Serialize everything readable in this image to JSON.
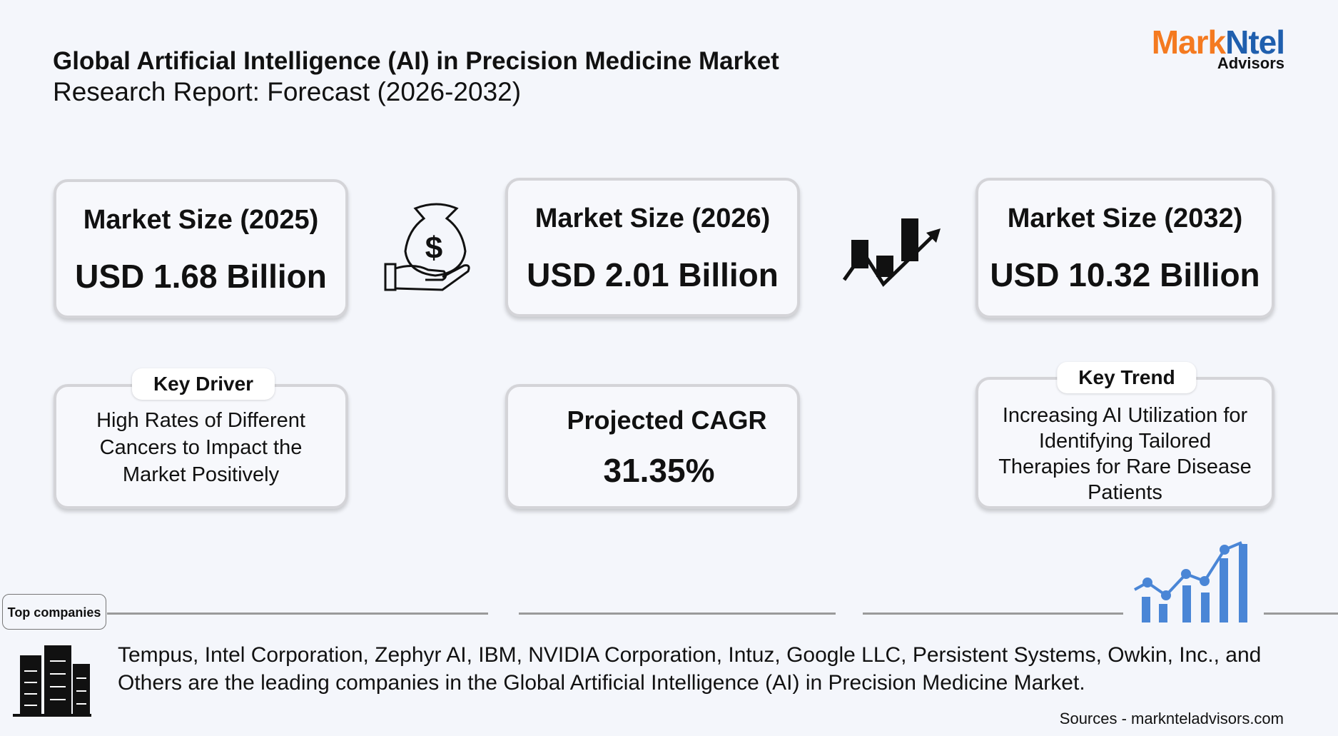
{
  "header": {
    "title": "Global Artificial Intelligence (AI) in Precision Medicine Market",
    "subtitle": "Research Report: Forecast (2026-2032)"
  },
  "logo": {
    "parts": [
      "Mark",
      "Ntel"
    ],
    "sub": "Advisors"
  },
  "cards": [
    {
      "label": "Market Size (2025)",
      "value": "USD 1.68 Billion"
    },
    {
      "label": "Market Size (2026)",
      "value": "USD 2.01 Billion"
    },
    {
      "label": "Market Size (2032)",
      "value": "USD 10.32 Billion"
    }
  ],
  "driver": {
    "label": "Key Driver",
    "text": "High Rates of Different Cancers to Impact the Market Positively"
  },
  "cagr": {
    "label": "Projected CAGR",
    "value": "31.35%"
  },
  "trend": {
    "label": "Key Trend",
    "text": "Increasing AI Utilization for Identifying Tailored Therapies for Rare Disease Patients"
  },
  "companies": {
    "label": "Top companies",
    "text": "Tempus, Intel Corporation, Zephyr AI, IBM, NVIDIA Corporation, Intuz, Google LLC, Persistent Systems, Owkin, Inc., and Others are the leading companies in the Global Artificial Intelligence (AI) in Precision Medicine Market."
  },
  "source": "Sources - marknteladvisors.com"
}
